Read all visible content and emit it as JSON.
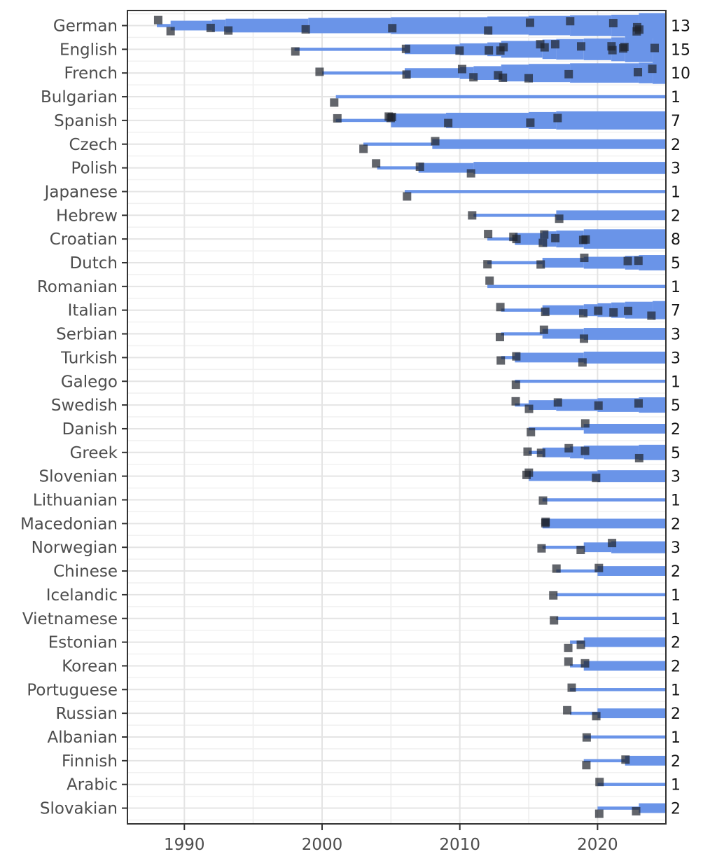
{
  "chart_data": {
    "type": "area",
    "title": "",
    "xlabel": "",
    "ylabel": "",
    "x_ticks": [
      1990,
      2000,
      2010,
      2020
    ],
    "x_minor_gridlines": [
      1995,
      2005,
      2015
    ],
    "x_range": [
      1986,
      2025
    ],
    "end_year": 2025,
    "grid": true,
    "legend": false,
    "marker_shape": "square",
    "colors": {
      "band": "#6A94E8",
      "marker": "#20242C",
      "marker_opacity": 0.7,
      "grid_major": "#e4e4e4",
      "grid_minor": "#f1f1f1",
      "panel_border": "#333333",
      "axis_text": "#4d4d4d",
      "count_text": "#151515"
    },
    "series": [
      {
        "language": "German",
        "count": 13,
        "years": [
          1988,
          1989,
          1992,
          1993,
          1999,
          2005,
          2012,
          2015,
          2018,
          2021,
          2023,
          2023,
          2023
        ]
      },
      {
        "language": "English",
        "count": 15,
        "years": [
          1998,
          2006,
          2010,
          2012,
          2013,
          2013,
          2016,
          2016,
          2017,
          2019,
          2021,
          2021,
          2022,
          2022,
          2024
        ]
      },
      {
        "language": "French",
        "count": 10,
        "years": [
          2000,
          2006,
          2010,
          2011,
          2013,
          2013,
          2015,
          2018,
          2023,
          2024
        ]
      },
      {
        "language": "Bulgarian",
        "count": 1,
        "years": [
          2001
        ]
      },
      {
        "language": "Spanish",
        "count": 7,
        "years": [
          2001,
          2005,
          2005,
          2005,
          2009,
          2015,
          2017
        ]
      },
      {
        "language": "Czech",
        "count": 2,
        "years": [
          2003,
          2008
        ]
      },
      {
        "language": "Polish",
        "count": 3,
        "years": [
          2004,
          2007,
          2011
        ]
      },
      {
        "language": "Japanese",
        "count": 1,
        "years": [
          2006
        ]
      },
      {
        "language": "Hebrew",
        "count": 2,
        "years": [
          2011,
          2017
        ]
      },
      {
        "language": "Croatian",
        "count": 8,
        "years": [
          2012,
          2014,
          2014,
          2016,
          2016,
          2017,
          2019,
          2019
        ]
      },
      {
        "language": "Dutch",
        "count": 5,
        "years": [
          2012,
          2016,
          2019,
          2022,
          2023
        ]
      },
      {
        "language": "Romanian",
        "count": 1,
        "years": [
          2012
        ]
      },
      {
        "language": "Italian",
        "count": 7,
        "years": [
          2013,
          2016,
          2019,
          2020,
          2021,
          2022,
          2024
        ]
      },
      {
        "language": "Serbian",
        "count": 3,
        "years": [
          2013,
          2016,
          2019
        ]
      },
      {
        "language": "Turkish",
        "count": 3,
        "years": [
          2013,
          2014,
          2019
        ]
      },
      {
        "language": "Galego",
        "count": 1,
        "years": [
          2014
        ]
      },
      {
        "language": "Swedish",
        "count": 5,
        "years": [
          2014,
          2015,
          2017,
          2020,
          2023
        ]
      },
      {
        "language": "Danish",
        "count": 2,
        "years": [
          2015,
          2019
        ]
      },
      {
        "language": "Greek",
        "count": 5,
        "years": [
          2015,
          2016,
          2018,
          2019,
          2023
        ]
      },
      {
        "language": "Slovenian",
        "count": 3,
        "years": [
          2015,
          2015,
          2020
        ]
      },
      {
        "language": "Lithuanian",
        "count": 1,
        "years": [
          2016
        ]
      },
      {
        "language": "Macedonian",
        "count": 2,
        "years": [
          2016,
          2016
        ]
      },
      {
        "language": "Norwegian",
        "count": 3,
        "years": [
          2016,
          2019,
          2021
        ]
      },
      {
        "language": "Chinese",
        "count": 2,
        "years": [
          2017,
          2020
        ]
      },
      {
        "language": "Icelandic",
        "count": 1,
        "years": [
          2017
        ]
      },
      {
        "language": "Vietnamese",
        "count": 1,
        "years": [
          2017
        ]
      },
      {
        "language": "Estonian",
        "count": 2,
        "years": [
          2018,
          2019
        ]
      },
      {
        "language": "Korean",
        "count": 2,
        "years": [
          2018,
          2019
        ]
      },
      {
        "language": "Portuguese",
        "count": 1,
        "years": [
          2018
        ]
      },
      {
        "language": "Russian",
        "count": 2,
        "years": [
          2018,
          2020
        ]
      },
      {
        "language": "Albanian",
        "count": 1,
        "years": [
          2019
        ]
      },
      {
        "language": "Finnish",
        "count": 2,
        "years": [
          2019,
          2022
        ]
      },
      {
        "language": "Arabic",
        "count": 1,
        "years": [
          2020
        ]
      },
      {
        "language": "Slovakian",
        "count": 2,
        "years": [
          2020,
          2023
        ]
      }
    ]
  }
}
